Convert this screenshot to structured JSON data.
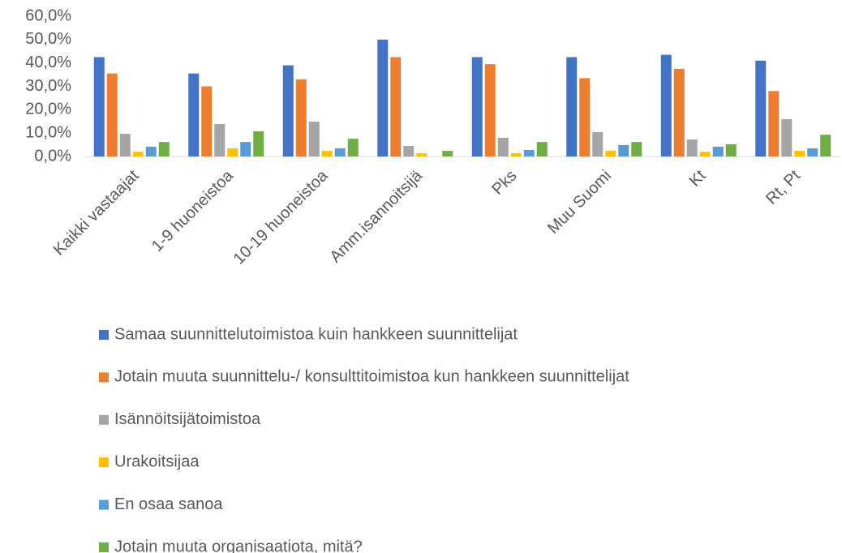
{
  "chart_data": {
    "type": "bar",
    "categories": [
      "Kaikki vastaajat",
      "1-9 huoneistoa",
      "10-19 huoneistoa",
      "Amm.isannoitsijä",
      "Pks",
      "Muu Suomi",
      "Kt",
      "Rt, Pt"
    ],
    "series": [
      {
        "name": "Samaa suunnittelutoimistoa kuin hankkeen suunnittelijat",
        "color": "#4472c4",
        "values": [
          42.5,
          35.5,
          39,
          50,
          42.5,
          42.5,
          43.5,
          41
        ]
      },
      {
        "name": "Jotain muuta suunnittelu-/ konsulttitoimistoa kun hankkeen suunnittelijat",
        "color": "#ed7d31",
        "values": [
          35.5,
          30,
          33,
          42.5,
          39.5,
          33.5,
          37.5,
          28
        ]
      },
      {
        "name": "Isännöitsijätoimistoa",
        "color": "#a5a5a5",
        "values": [
          9.7,
          13.9,
          14.9,
          4.5,
          8,
          10.4,
          7.3,
          16
        ]
      },
      {
        "name": "Urakoitsijaa",
        "color": "#ffc000",
        "values": [
          2,
          3.5,
          2.4,
          1.4,
          1.4,
          2.4,
          2,
          2.4
        ]
      },
      {
        "name": "En osaa sanoa",
        "color": "#5b9bd5",
        "values": [
          4.2,
          6.2,
          3.5,
          0,
          2.8,
          4.9,
          4.2,
          3.5
        ]
      },
      {
        "name": "Jotain muuta organisaatiota, mitä?",
        "color": "#70ad47",
        "values": [
          6.2,
          10.8,
          7.6,
          2.4,
          6.2,
          6.2,
          5.2,
          9.3
        ]
      }
    ],
    "ylim": [
      0,
      60
    ],
    "yticks": [
      {
        "value": 0,
        "label": "0,0%"
      },
      {
        "value": 10,
        "label": "10,0%"
      },
      {
        "value": 20,
        "label": "20,0%"
      },
      {
        "value": 30,
        "label": "30,0%"
      },
      {
        "value": 40,
        "label": "40,0%"
      },
      {
        "value": 50,
        "label": "50,0%"
      },
      {
        "value": 60,
        "label": "60,0%"
      }
    ],
    "grid": false
  }
}
